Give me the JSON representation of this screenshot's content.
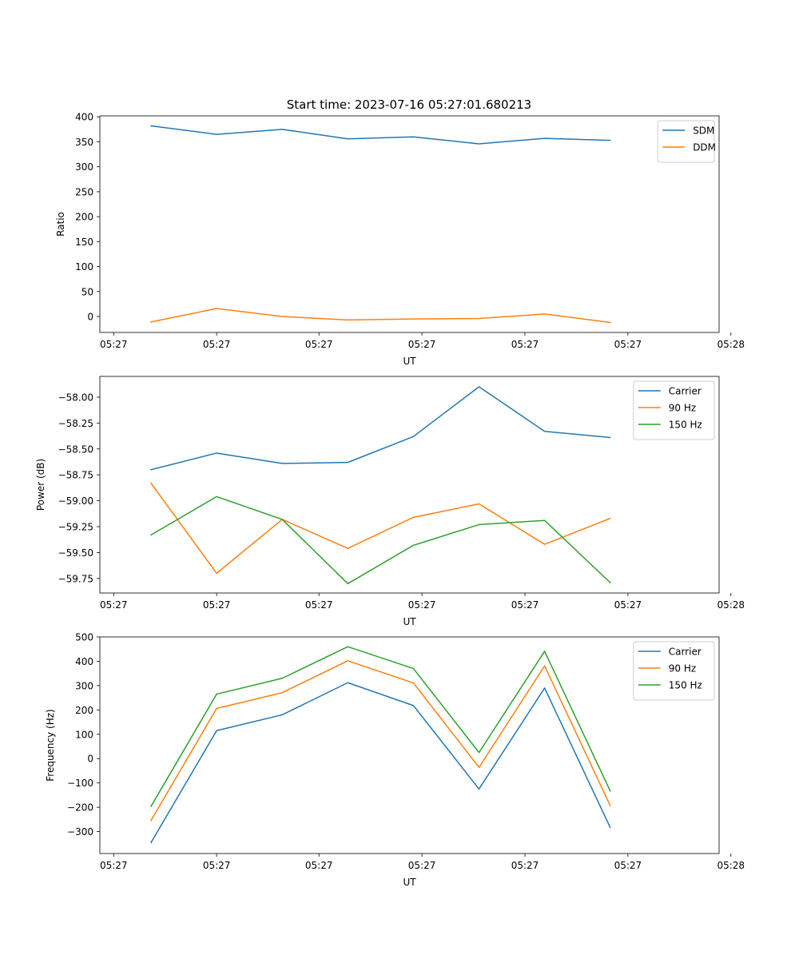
{
  "figure_title": "Start time: 2023-07-16 05:27:01.680213",
  "colors": {
    "blue": "#1f77b4",
    "orange": "#ff7f0e",
    "green": "#2ca02c"
  },
  "chart_data": [
    {
      "type": "line",
      "title": "Start time: 2023-07-16 05:27:01.680213",
      "xlabel": "UT",
      "ylabel": "Ratio",
      "x": [
        1,
        2,
        3,
        4,
        5,
        6,
        7,
        8
      ],
      "xlim": [
        0.22,
        9.66
      ],
      "ylim": [
        -32,
        402
      ],
      "x_ticks": [
        0.43,
        2.0,
        3.56,
        5.13,
        6.7,
        8.27,
        9.84
      ],
      "x_tick_labels": [
        "05:27",
        "05:27",
        "05:27",
        "05:27",
        "05:27",
        "05:27",
        "05:28"
      ],
      "y_ticks": [
        0,
        50,
        100,
        150,
        200,
        250,
        300,
        350,
        400
      ],
      "y_tick_labels": [
        "0",
        "50",
        "100",
        "150",
        "200",
        "250",
        "300",
        "350",
        "400"
      ],
      "legend": "top-right",
      "grid": false,
      "series": [
        {
          "name": "SDM",
          "color": "#1f77b4",
          "values": [
            382,
            365,
            375,
            356,
            360,
            346,
            357,
            353
          ]
        },
        {
          "name": "DDM",
          "color": "#ff7f0e",
          "values": [
            -11,
            16,
            0,
            -7,
            -5,
            -4,
            5,
            -12
          ]
        }
      ]
    },
    {
      "type": "line",
      "title": "",
      "xlabel": "UT",
      "ylabel": "Power (dB)",
      "x": [
        1,
        2,
        3,
        4,
        5,
        6,
        7,
        8
      ],
      "xlim": [
        0.22,
        9.66
      ],
      "ylim": [
        -59.89,
        -57.8
      ],
      "x_ticks": [
        0.43,
        2.0,
        3.56,
        5.13,
        6.7,
        8.27,
        9.84
      ],
      "x_tick_labels": [
        "05:27",
        "05:27",
        "05:27",
        "05:27",
        "05:27",
        "05:27",
        "05:28"
      ],
      "y_ticks": [
        -59.75,
        -59.5,
        -59.25,
        -59.0,
        -58.75,
        -58.5,
        -58.25,
        -58.0
      ],
      "y_tick_labels": [
        "−59.75",
        "−59.50",
        "−59.25",
        "−59.00",
        "−58.75",
        "−58.50",
        "−58.25",
        "−58.00"
      ],
      "legend": "top-right",
      "grid": false,
      "series": [
        {
          "name": "Carrier",
          "color": "#1f77b4",
          "values": [
            -58.7,
            -58.54,
            -58.64,
            -58.63,
            -58.38,
            -57.9,
            -58.33,
            -58.39
          ]
        },
        {
          "name": "90 Hz",
          "color": "#ff7f0e",
          "values": [
            -58.83,
            -59.7,
            -59.18,
            -59.46,
            -59.16,
            -59.03,
            -59.42,
            -59.17
          ]
        },
        {
          "name": "150 Hz",
          "color": "#2ca02c",
          "values": [
            -59.33,
            -58.96,
            -59.18,
            -59.8,
            -59.43,
            -59.23,
            -59.19,
            -59.79
          ]
        }
      ]
    },
    {
      "type": "line",
      "title": "",
      "xlabel": "UT",
      "ylabel": "Frequency (Hz)",
      "x": [
        1,
        2,
        3,
        4,
        5,
        6,
        7,
        8
      ],
      "xlim": [
        0.22,
        9.66
      ],
      "ylim": [
        -390,
        500
      ],
      "x_ticks": [
        0.43,
        2.0,
        3.56,
        5.13,
        6.7,
        8.27,
        9.84
      ],
      "x_tick_labels": [
        "05:27",
        "05:27",
        "05:27",
        "05:27",
        "05:27",
        "05:27",
        "05:28"
      ],
      "y_ticks": [
        -300,
        -200,
        -100,
        0,
        100,
        200,
        300,
        400,
        500
      ],
      "y_tick_labels": [
        "−300",
        "−200",
        "−100",
        "0",
        "100",
        "200",
        "300",
        "400",
        "500"
      ],
      "legend": "top-right",
      "grid": false,
      "series": [
        {
          "name": "Carrier",
          "color": "#1f77b4",
          "values": [
            -345,
            115,
            180,
            312,
            218,
            -125,
            290,
            -283
          ]
        },
        {
          "name": "90 Hz",
          "color": "#ff7f0e",
          "values": [
            -254,
            206,
            271,
            402,
            311,
            -36,
            381,
            -193
          ]
        },
        {
          "name": "150 Hz",
          "color": "#2ca02c",
          "values": [
            -196,
            265,
            330,
            460,
            370,
            25,
            441,
            -133
          ]
        }
      ]
    }
  ]
}
